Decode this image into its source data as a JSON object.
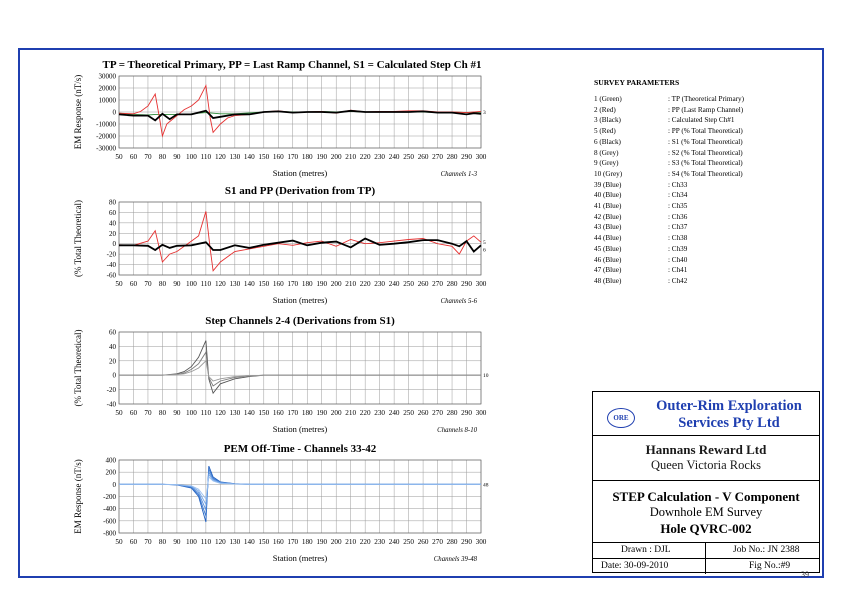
{
  "chart_data": [
    {
      "type": "line",
      "title": "TP = Theoretical Primary, PP = Last Ramp Channel, S1 = Calculated Step Ch #1",
      "xlabel": "Station (metres)",
      "ylabel": "EM Response (nT/s)",
      "channel_note": "Channels 1-3",
      "xlim": [
        50,
        300
      ],
      "ylim": [
        -30000,
        30000
      ],
      "yticks": [
        30000,
        20000,
        10000,
        0,
        -10000,
        -20000,
        -30000
      ],
      "xticks": [
        50,
        60,
        70,
        80,
        90,
        100,
        110,
        120,
        130,
        140,
        150,
        160,
        170,
        180,
        190,
        200,
        210,
        220,
        230,
        240,
        250,
        260,
        270,
        280,
        290,
        300
      ],
      "end_labels": [
        "3"
      ],
      "series": [
        {
          "color": "#2e8b3a",
          "x": [
            50,
            60,
            70,
            75,
            80,
            90,
            100,
            105,
            110,
            115,
            120,
            130,
            150,
            160,
            170,
            180,
            190,
            200,
            210,
            220,
            230,
            240,
            250,
            260,
            270,
            280,
            290,
            300
          ],
          "y": [
            -1000,
            -2000,
            -2500,
            -2000,
            -2000,
            -2000,
            -1500,
            -1000,
            -500,
            -1000,
            -1500,
            -1500,
            0,
            500,
            0,
            0,
            500,
            0,
            500,
            0,
            0,
            0,
            0,
            0,
            -500,
            0,
            -500,
            0
          ]
        },
        {
          "color": "#e53030",
          "x": [
            50,
            60,
            65,
            70,
            75,
            78,
            80,
            83,
            90,
            95,
            100,
            105,
            110,
            113,
            115,
            120,
            125,
            130,
            140,
            150,
            160,
            170,
            180,
            190,
            200,
            210,
            220,
            230,
            240,
            250,
            260,
            270,
            280,
            290,
            300
          ],
          "y": [
            -1000,
            -1500,
            500,
            5000,
            15000,
            -5000,
            -20000,
            -10000,
            -3000,
            2000,
            5000,
            10000,
            22000,
            -5000,
            -17000,
            -10000,
            -5000,
            -3000,
            -2000,
            0,
            1000,
            -500,
            0,
            500,
            -1000,
            1500,
            0,
            500,
            500,
            1000,
            1000,
            0,
            0,
            -500,
            500
          ]
        },
        {
          "color": "#000000",
          "x": [
            50,
            60,
            70,
            75,
            80,
            85,
            90,
            100,
            110,
            115,
            120,
            130,
            140,
            150,
            160,
            170,
            180,
            190,
            200,
            210,
            220,
            230,
            240,
            250,
            260,
            270,
            280,
            290,
            295,
            300
          ],
          "y": [
            -2000,
            -3000,
            -3000,
            -7000,
            -1500,
            -6000,
            -2000,
            -2000,
            1000,
            -5000,
            -4000,
            -2000,
            -2000,
            0,
            500,
            -500,
            0,
            0,
            -500,
            1000,
            0,
            0,
            0,
            0,
            500,
            -500,
            -500,
            -2000,
            -1000,
            -1500
          ]
        }
      ]
    },
    {
      "type": "line",
      "title": "S1 and PP (Derivation from TP)",
      "xlabel": "Station (metres)",
      "ylabel": "(% Total Theoretical)",
      "channel_note": "Channels 5-6",
      "xlim": [
        50,
        300
      ],
      "ylim": [
        -60,
        80
      ],
      "yticks": [
        80,
        60,
        40,
        20,
        0,
        -20,
        -40,
        -60
      ],
      "xticks": [
        50,
        60,
        70,
        80,
        90,
        100,
        110,
        120,
        130,
        140,
        150,
        160,
        170,
        180,
        190,
        200,
        210,
        220,
        230,
        240,
        250,
        260,
        270,
        280,
        290,
        300
      ],
      "end_labels": [
        "5",
        "6"
      ],
      "series": [
        {
          "color": "#e53030",
          "x": [
            50,
            60,
            70,
            75,
            78,
            80,
            85,
            90,
            100,
            105,
            110,
            113,
            115,
            120,
            130,
            140,
            150,
            160,
            170,
            180,
            190,
            200,
            210,
            220,
            230,
            240,
            250,
            260,
            270,
            280,
            285,
            290,
            295,
            300
          ],
          "y": [
            -2,
            -3,
            5,
            25,
            -10,
            -35,
            -20,
            -15,
            5,
            15,
            62,
            -10,
            -52,
            -35,
            -15,
            -10,
            -5,
            0,
            -3,
            2,
            5,
            -5,
            8,
            0,
            2,
            5,
            8,
            10,
            0,
            -5,
            -20,
            5,
            15,
            3
          ]
        },
        {
          "color": "#000000",
          "x": [
            50,
            60,
            70,
            75,
            80,
            85,
            90,
            100,
            110,
            115,
            120,
            130,
            140,
            150,
            160,
            170,
            180,
            190,
            200,
            210,
            220,
            230,
            240,
            250,
            260,
            270,
            280,
            285,
            290,
            295,
            300
          ],
          "y": [
            -3,
            -3,
            -4,
            -12,
            -2,
            -8,
            -4,
            -3,
            3,
            -12,
            -12,
            -3,
            -8,
            -2,
            2,
            6,
            -3,
            2,
            4,
            -7,
            10,
            -2,
            0,
            3,
            7,
            7,
            0,
            -5,
            5,
            -15,
            -3
          ]
        }
      ]
    },
    {
      "type": "line",
      "title": "Step Channels 2-4 (Derivations from S1)",
      "xlabel": "Station (metres)",
      "ylabel": "(% Total Theoretical)",
      "channel_note": "Channels 8-10",
      "xlim": [
        50,
        300
      ],
      "ylim": [
        -40,
        60
      ],
      "yticks": [
        60,
        40,
        20,
        0,
        -20,
        -40
      ],
      "xticks": [
        50,
        60,
        70,
        80,
        90,
        100,
        110,
        120,
        130,
        140,
        150,
        160,
        170,
        180,
        190,
        200,
        210,
        220,
        230,
        240,
        250,
        260,
        270,
        280,
        290,
        300
      ],
      "end_labels": [
        "10"
      ],
      "series": [
        {
          "color": "#555555",
          "x": [
            50,
            80,
            90,
            95,
            100,
            105,
            110,
            112,
            115,
            120,
            130,
            140,
            150,
            300
          ],
          "y": [
            0,
            0,
            2,
            5,
            12,
            25,
            48,
            -5,
            -25,
            -12,
            -5,
            -2,
            0,
            0
          ]
        },
        {
          "color": "#7a7a7a",
          "x": [
            50,
            80,
            90,
            95,
            100,
            105,
            110,
            112,
            115,
            120,
            130,
            140,
            150,
            300
          ],
          "y": [
            0,
            0,
            1,
            3,
            8,
            16,
            32,
            -3,
            -15,
            -8,
            -3,
            -1,
            0,
            0
          ]
        },
        {
          "color": "#9a9a9a",
          "x": [
            50,
            80,
            90,
            95,
            100,
            105,
            110,
            112,
            115,
            120,
            130,
            140,
            150,
            300
          ],
          "y": [
            0,
            0,
            1,
            2,
            5,
            10,
            20,
            -2,
            -8,
            -5,
            -2,
            -1,
            0,
            0
          ]
        }
      ]
    },
    {
      "type": "line",
      "title": "PEM Off-Time - Channels 33-42",
      "xlabel": "Station (metres)",
      "ylabel": "EM Response (nT/s)",
      "channel_note": "Channels 39-48",
      "xlim": [
        50,
        300
      ],
      "ylim": [
        -800,
        400
      ],
      "yticks": [
        400,
        200,
        0,
        -200,
        -400,
        -600,
        -800
      ],
      "xticks": [
        50,
        60,
        70,
        80,
        90,
        100,
        110,
        120,
        130,
        140,
        150,
        160,
        170,
        180,
        190,
        200,
        210,
        220,
        230,
        240,
        250,
        260,
        270,
        280,
        290,
        300
      ],
      "end_labels": [
        "48"
      ],
      "series": [
        {
          "color": "#1f5fbf",
          "x": [
            50,
            80,
            90,
            100,
            105,
            110,
            112,
            115,
            120,
            130,
            140,
            300
          ],
          "y": [
            0,
            0,
            -10,
            -60,
            -200,
            -620,
            300,
            120,
            40,
            10,
            0,
            0
          ]
        },
        {
          "color": "#3a78d0",
          "x": [
            50,
            80,
            90,
            100,
            105,
            110,
            112,
            115,
            120,
            130,
            140,
            300
          ],
          "y": [
            0,
            0,
            -8,
            -50,
            -170,
            -520,
            250,
            100,
            35,
            8,
            0,
            0
          ]
        },
        {
          "color": "#5a90dc",
          "x": [
            50,
            80,
            90,
            100,
            105,
            110,
            112,
            115,
            120,
            130,
            140,
            300
          ],
          "y": [
            0,
            0,
            -6,
            -40,
            -140,
            -420,
            200,
            85,
            28,
            6,
            0,
            0
          ]
        },
        {
          "color": "#78a8e6",
          "x": [
            50,
            80,
            90,
            100,
            105,
            110,
            112,
            115,
            120,
            130,
            140,
            300
          ],
          "y": [
            0,
            0,
            -5,
            -32,
            -110,
            -330,
            160,
            70,
            22,
            5,
            0,
            0
          ]
        },
        {
          "color": "#98bff0",
          "x": [
            50,
            80,
            90,
            100,
            105,
            110,
            112,
            115,
            120,
            130,
            140,
            300
          ],
          "y": [
            0,
            0,
            -4,
            -24,
            -80,
            -240,
            120,
            55,
            16,
            4,
            0,
            0
          ]
        }
      ]
    }
  ],
  "survey_parameters": {
    "title": "SURVEY PARAMETERS",
    "rows": [
      {
        "ch": "1 (Green)",
        "desc": ": TP (Theoretical Primary)"
      },
      {
        "ch": "2 (Red)",
        "desc": ": PP (Last Ramp Channel)"
      },
      {
        "ch": "3 (Black)",
        "desc": ": Calculated Step Ch#1"
      },
      {
        "ch": "5 (Red)",
        "desc": ": PP (% Total Theoretical)"
      },
      {
        "ch": "6 (Black)",
        "desc": ": S1 (% Total Theoretical)"
      },
      {
        "ch": "8 (Grey)",
        "desc": ": S2 (% Total Theoretical)"
      },
      {
        "ch": "9 (Grey)",
        "desc": ": S3 (% Total Theoretical)"
      },
      {
        "ch": "10 (Grey)",
        "desc": ": S4 (% Total Theoretical)"
      },
      {
        "ch": "39 (Blue)",
        "desc": ": Ch33"
      },
      {
        "ch": "40 (Blue)",
        "desc": ": Ch34"
      },
      {
        "ch": "41 (Blue)",
        "desc": ": Ch35"
      },
      {
        "ch": "42 (Blue)",
        "desc": ": Ch36"
      },
      {
        "ch": "43 (Blue)",
        "desc": ": Ch37"
      },
      {
        "ch": "44 (Blue)",
        "desc": ": Ch38"
      },
      {
        "ch": "45 (Blue)",
        "desc": ": Ch39"
      },
      {
        "ch": "46 (Blue)",
        "desc": ": Ch40"
      },
      {
        "ch": "47 (Blue)",
        "desc": ": Ch41"
      },
      {
        "ch": "48 (Blue)",
        "desc": ": Ch42"
      }
    ]
  },
  "title_block": {
    "logo_text": "ORE",
    "company_line1": "Outer-Rim Exploration",
    "company_line2": "Services Pty Ltd",
    "client": "Hannans Reward Ltd",
    "project": "Queen Victoria Rocks",
    "calc_title": "STEP Calculation - V Component",
    "survey": "Downhole EM Survey",
    "hole": "Hole QVRC-002",
    "drawn": "Drawn : DJL",
    "job": "Job No.: JN 2388",
    "date": "Date: 30-09-2010",
    "fig": "Fig No.:#9"
  },
  "page_number": "39",
  "colors": {
    "frame": "#1f3fb0",
    "company": "#1f3fb0"
  }
}
